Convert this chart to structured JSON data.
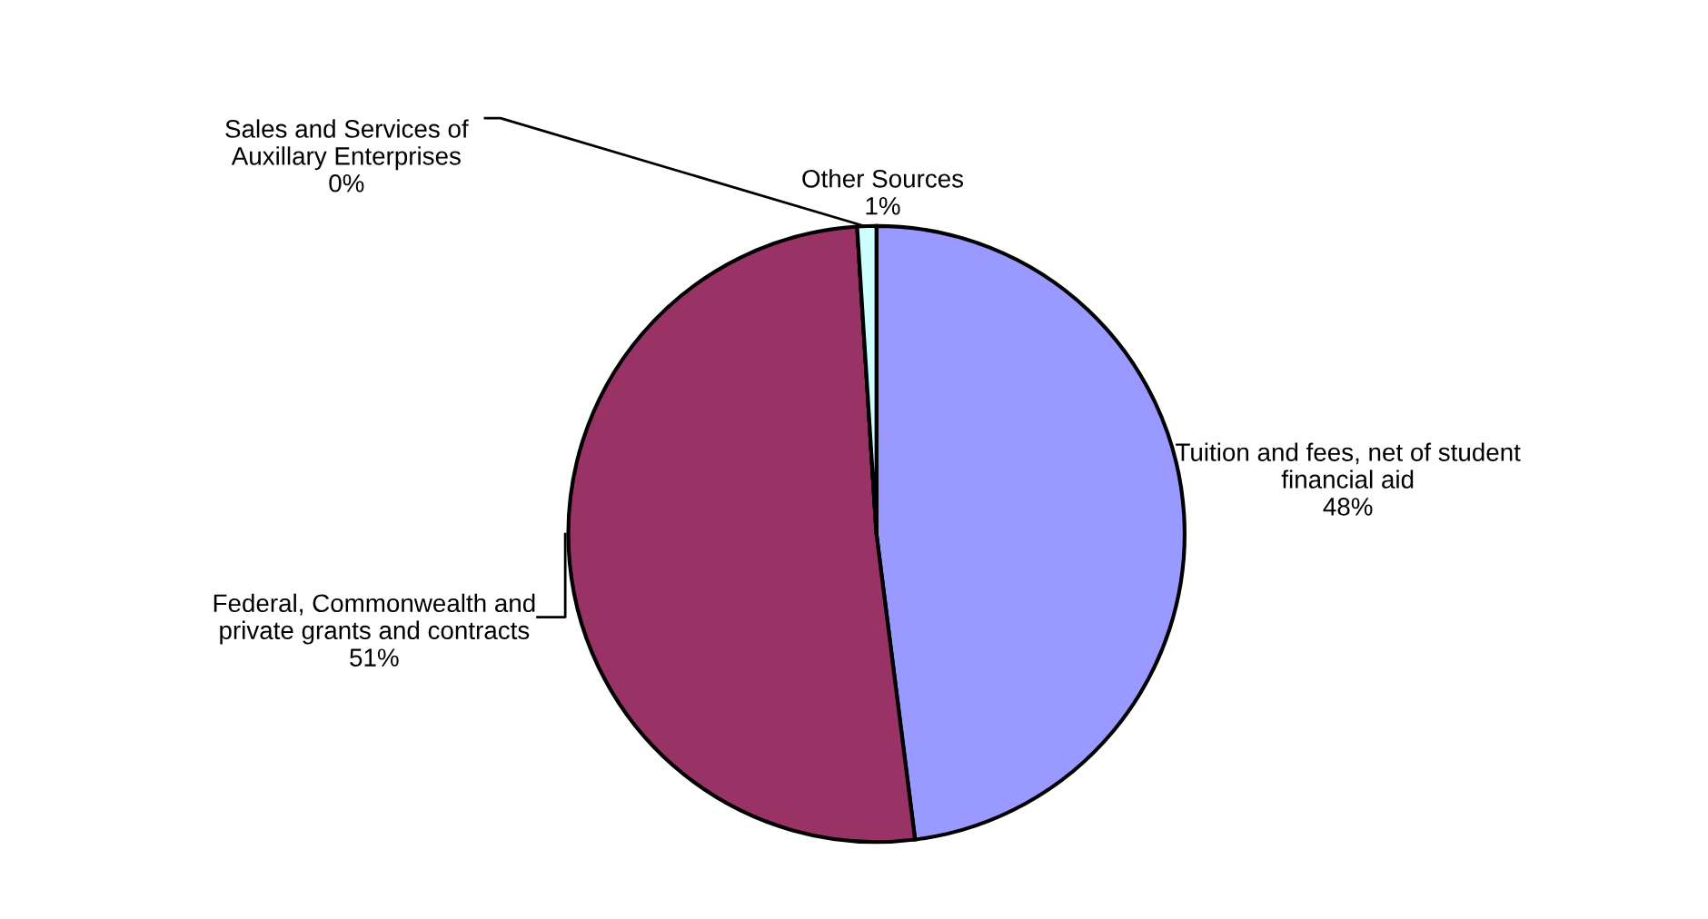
{
  "chart_data": {
    "type": "pie",
    "categories": [
      "Tuition and fees, net of student\nfinancial aid",
      "Federal, Commonwealth and\nprivate grants and contracts",
      "Sales and Services of\nAuxillary Enterprises",
      "Other Sources"
    ],
    "values": [
      48,
      51,
      0,
      1
    ],
    "value_labels": [
      "48%",
      "51%",
      "0%",
      "1%"
    ],
    "colors": [
      "#9999ff",
      "#993366",
      "#ffffcc",
      "#ccffff"
    ],
    "legend": false
  }
}
